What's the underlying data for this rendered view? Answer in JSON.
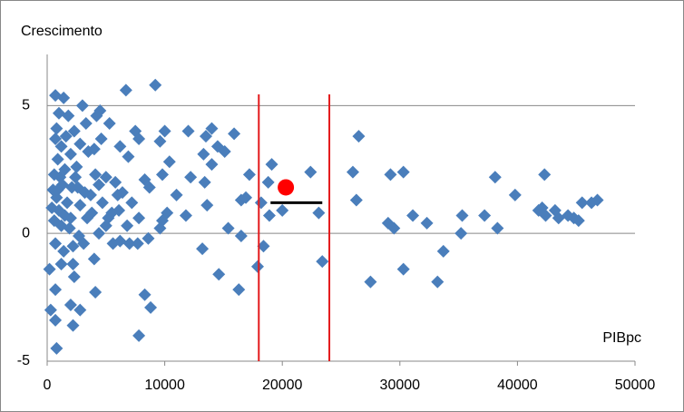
{
  "chart_data": {
    "type": "scatter",
    "y_label": "Crescimento",
    "x_label": "PIBpc",
    "xlim": [
      0,
      50000
    ],
    "xticks": [
      0,
      10000,
      20000,
      30000,
      40000,
      50000
    ],
    "ylim": [
      -5,
      7
    ],
    "yticks": [
      -5,
      0,
      5
    ],
    "grid": true,
    "color": "#4a7ebb",
    "x": [
      700,
      1400,
      1000,
      1800,
      800,
      2300,
      3000,
      1600,
      700,
      1200,
      2800,
      3300,
      2000,
      900,
      1500,
      600,
      2500,
      1100,
      3500,
      4000,
      4200,
      4500,
      4600,
      5300,
      1300,
      500,
      2100,
      800,
      1700,
      400,
      1000,
      1500,
      600,
      1200,
      2000,
      2800,
      3200,
      3700,
      4100,
      4400,
      5000,
      4700,
      5500,
      6000,
      5800,
      6200,
      6700,
      7500,
      7800,
      6900,
      6400,
      6100,
      7200,
      6800,
      7800,
      8300,
      8700,
      9200,
      9600,
      10000,
      9800,
      10400,
      11000,
      10200,
      9800,
      9600,
      8600,
      7700,
      7000,
      6200,
      5600,
      5000,
      4400,
      4000,
      3100,
      2700,
      2200,
      1400,
      700,
      200,
      1200,
      2200,
      2300,
      700,
      4100,
      300,
      700,
      2000,
      2800,
      2200,
      8300,
      8800,
      7800,
      800,
      12000,
      13500,
      14000,
      13300,
      14500,
      14000,
      15100,
      15900,
      12200,
      13400,
      13600,
      11800,
      15400,
      16500,
      17200,
      16900,
      16500,
      13200,
      14600,
      16300,
      17900,
      18400,
      18200,
      18800,
      19100,
      18900,
      20000,
      22400,
      23100,
      23400,
      26000,
      26500,
      26300,
      27500,
      29000,
      29200,
      29500,
      30300,
      30300,
      31100,
      32300,
      33200,
      33700,
      35200,
      35300,
      37200,
      38100,
      38300,
      39800,
      41800,
      42100,
      42300,
      42400,
      43200,
      43500,
      44300,
      44800,
      45200,
      45500,
      46300,
      46800,
      2600,
      3800,
      1900,
      900,
      5200,
      2400,
      3400
    ],
    "values": [
      5.4,
      5.3,
      4.7,
      4.6,
      4.1,
      4.0,
      5.0,
      3.8,
      3.7,
      3.4,
      3.5,
      4.3,
      3.1,
      2.9,
      2.5,
      2.3,
      2.6,
      2.2,
      3.2,
      3.3,
      4.6,
      4.8,
      3.7,
      4.3,
      1.9,
      1.7,
      1.8,
      1.4,
      1.2,
      1.0,
      0.9,
      0.7,
      0.5,
      0.3,
      0.6,
      1.1,
      1.6,
      1.5,
      2.3,
      1.9,
      2.2,
      1.2,
      0.8,
      1.5,
      2.0,
      3.4,
      5.6,
      4.0,
      3.7,
      3.0,
      1.6,
      0.9,
      1.2,
      0.3,
      0.6,
      2.1,
      1.8,
      5.8,
      3.6,
      4.0,
      2.3,
      2.8,
      1.5,
      0.8,
      0.5,
      0.2,
      -0.2,
      -0.4,
      -0.4,
      -0.3,
      -0.4,
      0.3,
      0.0,
      -1.0,
      -0.4,
      -0.1,
      -0.5,
      -0.7,
      -0.4,
      -1.4,
      -1.2,
      -1.2,
      -1.7,
      -2.2,
      -2.3,
      -3.0,
      -3.4,
      -2.8,
      -3.0,
      -3.6,
      -2.4,
      -2.9,
      -4.0,
      -4.5,
      4.0,
      3.8,
      4.1,
      3.1,
      3.4,
      2.7,
      3.2,
      3.9,
      2.2,
      2.0,
      1.1,
      0.7,
      0.2,
      1.3,
      2.3,
      1.4,
      -0.1,
      -0.6,
      -1.6,
      -2.2,
      -1.3,
      -0.5,
      1.2,
      2.0,
      2.7,
      0.7,
      0.9,
      2.4,
      0.8,
      -1.1,
      2.4,
      3.8,
      1.3,
      -1.9,
      0.4,
      2.3,
      0.2,
      2.4,
      -1.4,
      0.7,
      0.4,
      -1.9,
      -0.7,
      0.0,
      0.7,
      0.7,
      2.2,
      0.2,
      1.5,
      0.9,
      1.0,
      2.3,
      0.7,
      0.9,
      0.6,
      0.7,
      0.6,
      0.5,
      1.2,
      1.2,
      1.3,
      1.8,
      0.8,
      0.2,
      1.7,
      0.6,
      2.2,
      0.6
    ],
    "reference_lines": [
      18000,
      24000
    ],
    "reference_color": "#e31a1c",
    "highlight": {
      "x": 20300,
      "y": 1.8,
      "color": "#ff0000"
    },
    "segment": {
      "x": [
        19000,
        23400
      ],
      "y": 1.2,
      "color": "#000000"
    }
  }
}
